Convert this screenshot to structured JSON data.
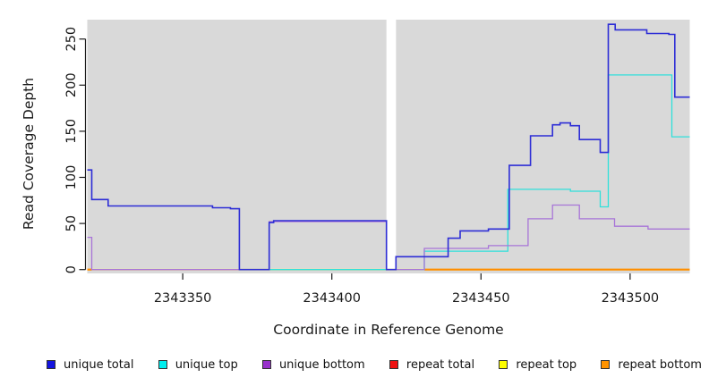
{
  "chart_data": {
    "type": "line",
    "title": "",
    "xlabel": "Coordinate in Reference Genome",
    "ylabel": "Read Coverage Depth",
    "xlim": [
      2343318,
      2343520
    ],
    "ylim": [
      0,
      271
    ],
    "x_ticks": [
      2343350,
      2343400,
      2343450,
      2343500
    ],
    "y_ticks": [
      0,
      50,
      100,
      150,
      200,
      250
    ],
    "panel_background": "#d9d9d9",
    "gap_region": {
      "x_start": 2343418.3,
      "x_end": 2343421.5
    },
    "interpolation": "step-after",
    "series": [
      {
        "name": "repeat top",
        "color": "#efef9e",
        "line_width": 2.0,
        "segments": [
          [
            [
              2343318,
              0
            ],
            [
              2343520,
              0
            ]
          ]
        ]
      },
      {
        "name": "repeat total",
        "color": "#dd4466",
        "line_width": 1.2,
        "segments": [
          [
            [
              2343318,
              0
            ],
            [
              2343520,
              0
            ]
          ]
        ]
      },
      {
        "name": "repeat bottom",
        "color": "#ff8c00",
        "line_width": 2.2,
        "segments": [
          [
            [
              2343318,
              0
            ],
            [
              2343319.5,
              0
            ]
          ],
          [
            [
              2343431,
              0
            ],
            [
              2343520,
              0
            ]
          ]
        ]
      },
      {
        "name": "unique top",
        "color": "#2fe0da",
        "line_width": 1.3,
        "segments": [
          [
            [
              2343379,
              0
            ],
            [
              2343431,
              20
            ],
            [
              2343459,
              87
            ],
            [
              2343480,
              85
            ],
            [
              2343490,
              68
            ],
            [
              2343492.7,
              211
            ],
            [
              2343514,
              144
            ],
            [
              2343520,
              144
            ]
          ]
        ]
      },
      {
        "name": "unique bottom",
        "color": "#a875d8",
        "line_width": 1.3,
        "segments": [
          [
            [
              2343318,
              35
            ],
            [
              2343319.5,
              0
            ],
            [
              2343379,
              52
            ],
            [
              2343418.3,
              0
            ],
            [
              2343431,
              23
            ],
            [
              2343452.5,
              26
            ],
            [
              2343465.8,
              55
            ],
            [
              2343474,
              70
            ],
            [
              2343483,
              55
            ],
            [
              2343494.8,
              47
            ],
            [
              2343506,
              44
            ],
            [
              2343520,
              44
            ]
          ]
        ]
      },
      {
        "name": "unique total",
        "color": "#2d2dd6",
        "line_width": 1.6,
        "segments": [
          [
            [
              2343318,
              108
            ],
            [
              2343319.5,
              76
            ],
            [
              2343325,
              69
            ],
            [
              2343360,
              67
            ],
            [
              2343366,
              66
            ],
            [
              2343369,
              0
            ],
            [
              2343379,
              51
            ],
            [
              2343380.5,
              53
            ],
            [
              2343418.3,
              0
            ],
            [
              2343421.5,
              14
            ],
            [
              2343439,
              34
            ],
            [
              2343443,
              42
            ],
            [
              2343452.5,
              44
            ],
            [
              2343459.5,
              113
            ],
            [
              2343466.6,
              145
            ],
            [
              2343474,
              157
            ],
            [
              2343476.5,
              159
            ],
            [
              2343480,
              156
            ],
            [
              2343483,
              141
            ],
            [
              2343490,
              127
            ],
            [
              2343492.7,
              266
            ],
            [
              2343495,
              260
            ],
            [
              2343505.6,
              256
            ],
            [
              2343513,
              255
            ],
            [
              2343515,
              187
            ],
            [
              2343520,
              187
            ]
          ]
        ]
      }
    ],
    "legend": [
      {
        "label": "unique total",
        "color": "#1414e0"
      },
      {
        "label": "unique top",
        "color": "#00eeee"
      },
      {
        "label": "unique bottom",
        "color": "#9932cc"
      },
      {
        "label": "repeat total",
        "color": "#ee1111"
      },
      {
        "label": "repeat top",
        "color": "#ffff00"
      },
      {
        "label": "repeat bottom",
        "color": "#ff9300"
      }
    ],
    "legend_position": "bottom",
    "grid": false
  }
}
